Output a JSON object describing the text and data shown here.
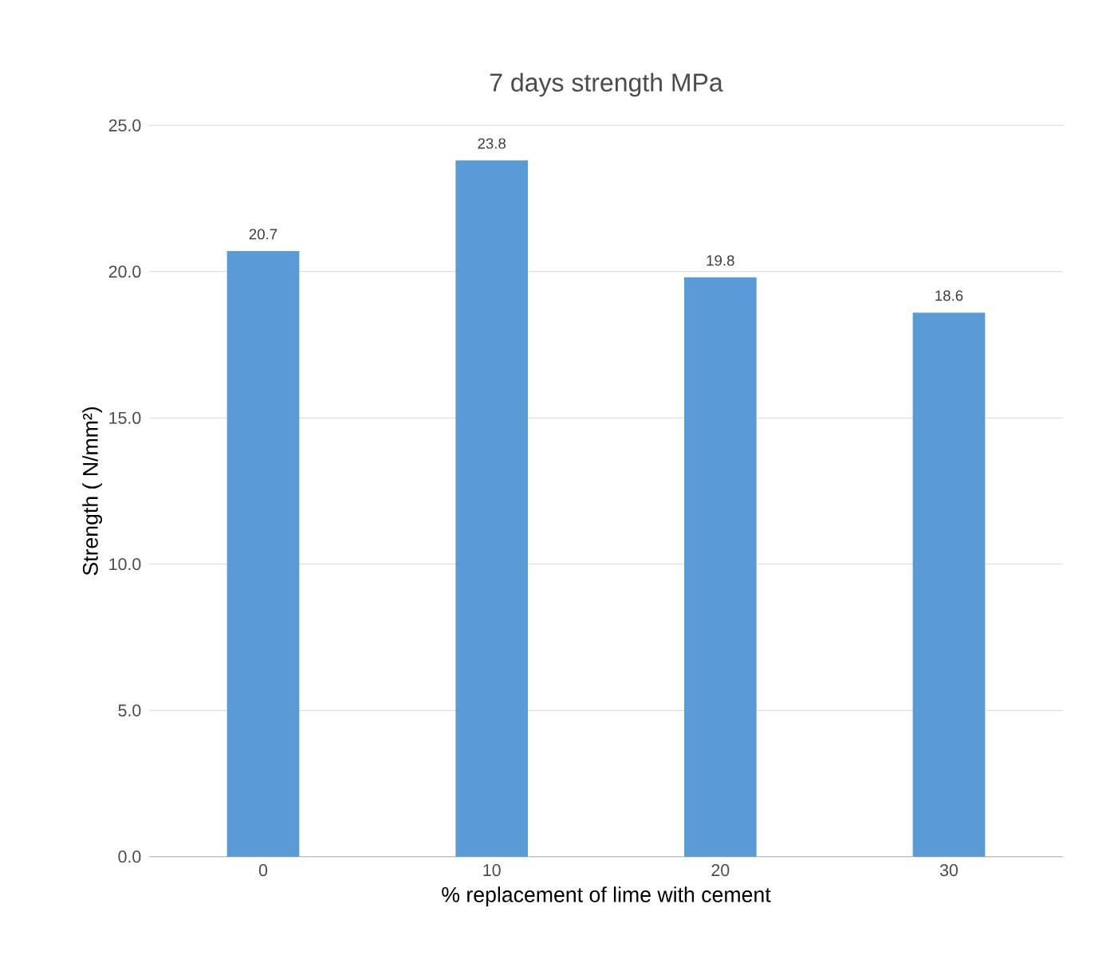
{
  "chart_data": {
    "type": "bar",
    "title": "7 days strength MPa",
    "xlabel": "% replacement of lime with cement",
    "ylabel": "Strength   ( N/mm²)",
    "categories": [
      "0",
      "10",
      "20",
      "30"
    ],
    "values": [
      20.7,
      23.8,
      19.8,
      18.6
    ],
    "color": "#5b9bd5",
    "ylim": [
      0,
      25
    ],
    "yticks": [
      {
        "value": 0,
        "label": "0.0"
      },
      {
        "value": 5,
        "label": "5.0"
      },
      {
        "value": 10,
        "label": "10.0"
      },
      {
        "value": 15,
        "label": "15.0"
      },
      {
        "value": 20,
        "label": "20.0"
      },
      {
        "value": 25,
        "label": "25.0"
      }
    ],
    "grid": "y",
    "data_labels": true
  }
}
